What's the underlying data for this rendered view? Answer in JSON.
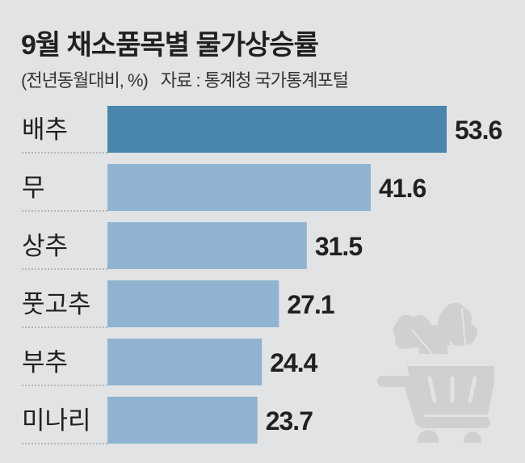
{
  "chart_data": {
    "type": "bar",
    "orientation": "horizontal",
    "title": "9월 채소품목별 물가상승률",
    "subtitle": "(전년동월대비, %)",
    "source": "자료 : 통계청 국가통계포털",
    "categories": [
      "배추",
      "무",
      "상추",
      "풋고추",
      "부추",
      "미나리"
    ],
    "values": [
      53.6,
      41.6,
      31.5,
      27.1,
      24.4,
      23.7
    ],
    "value_labels": [
      "53.6",
      "41.6",
      "31.5",
      "27.1",
      "24.4",
      "23.7"
    ],
    "xlim": [
      0,
      53.6
    ],
    "grid": false,
    "highlight_index": 0,
    "colors": {
      "highlight": "#4a86ab",
      "bar": "#8fb3d0",
      "background": "#e2e3e5",
      "icon": "#cfd0d2"
    }
  },
  "decoration": {
    "icon": "shopping-cart-with-vegetables-icon"
  }
}
